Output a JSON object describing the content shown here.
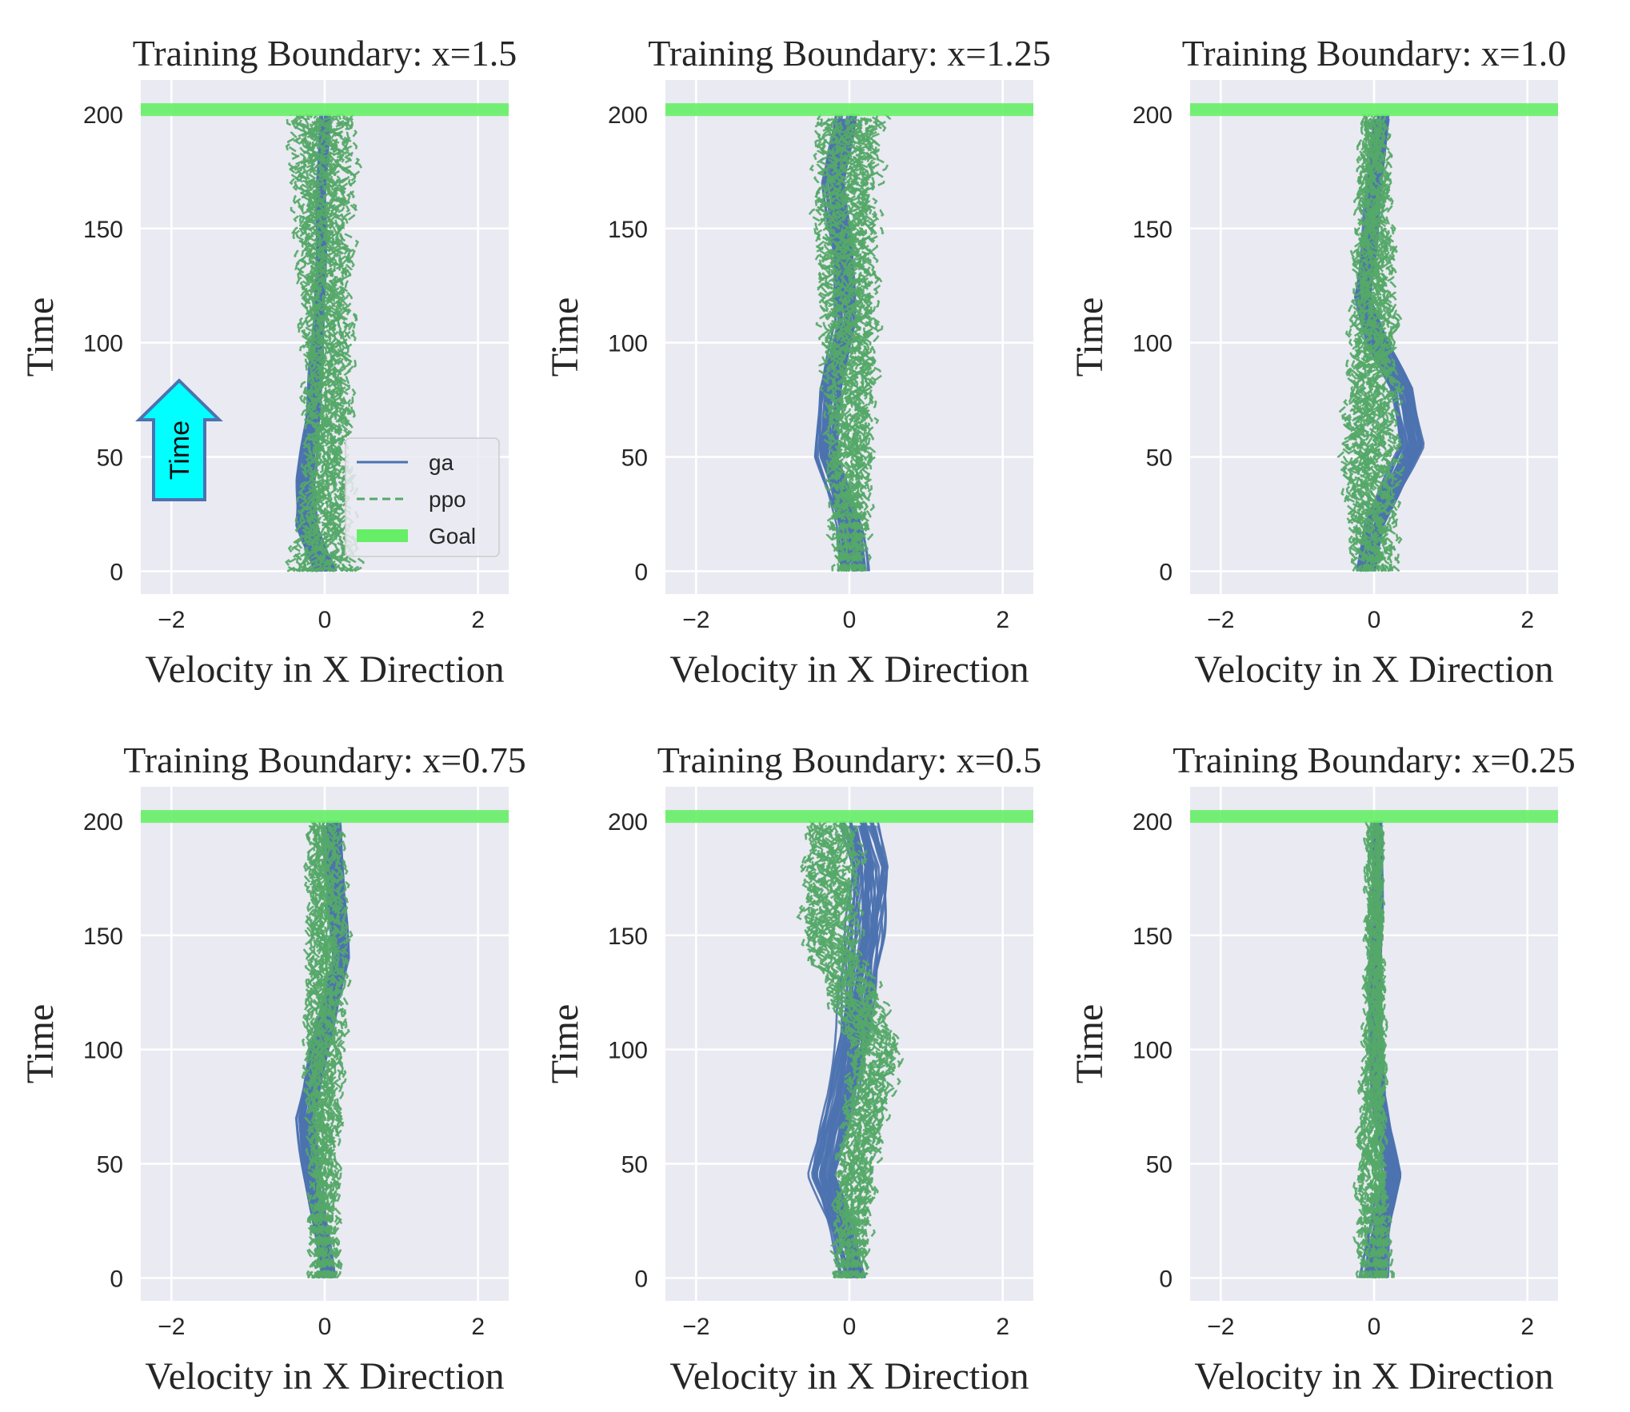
{
  "figure": {
    "annotation": {
      "label": "Time",
      "fill": "#00ffff",
      "edge": "#4c72b0"
    }
  },
  "chart_data": [
    {
      "type": "line",
      "title": "Training Boundary: x=1.5",
      "xlabel": "Velocity in X Direction",
      "ylabel": "Time",
      "xlim": [
        -2.4,
        2.4
      ],
      "ylim": [
        -10,
        215
      ],
      "xticks": [
        -2,
        0,
        2
      ],
      "yticks": [
        0,
        50,
        100,
        150,
        200
      ],
      "grid": true,
      "legend": {
        "placement": "lower-right",
        "entries": [
          "ga",
          "ppo",
          "Goal"
        ]
      },
      "goal": 202,
      "series": [
        {
          "name": "ga",
          "style": "solid",
          "color": "#4c72b0",
          "center": [
            [
              0,
              0.0
            ],
            [
              20,
              -0.25
            ],
            [
              40,
              -0.25
            ],
            [
              70,
              -0.15
            ],
            [
              100,
              -0.1
            ],
            [
              130,
              -0.05
            ],
            [
              160,
              -0.05
            ],
            [
              200,
              0.0
            ]
          ],
          "width": [
            [
              0,
              0.25
            ],
            [
              40,
              0.2
            ],
            [
              100,
              0.12
            ],
            [
              200,
              0.1
            ]
          ]
        },
        {
          "name": "ppo",
          "style": "dashed",
          "color": "#55a868",
          "center": [
            [
              0,
              0.0
            ],
            [
              50,
              0.05
            ],
            [
              100,
              0.05
            ],
            [
              150,
              0.0
            ],
            [
              200,
              0.0
            ]
          ],
          "width": [
            [
              0,
              0.6
            ],
            [
              50,
              0.4
            ],
            [
              100,
              0.45
            ],
            [
              150,
              0.5
            ],
            [
              200,
              0.6
            ]
          ]
        }
      ]
    },
    {
      "type": "line",
      "title": "Training Boundary: x=1.25",
      "xlabel": "Velocity in X Direction",
      "ylabel": "Time",
      "xlim": [
        -2.4,
        2.4
      ],
      "ylim": [
        -10,
        215
      ],
      "xticks": [
        -2,
        0,
        2
      ],
      "yticks": [
        0,
        50,
        100,
        150,
        200
      ],
      "grid": true,
      "goal": 202,
      "series": [
        {
          "name": "ga",
          "style": "solid",
          "color": "#4c72b0",
          "center": [
            [
              0,
              0.05
            ],
            [
              20,
              0.0
            ],
            [
              50,
              -0.3
            ],
            [
              80,
              -0.25
            ],
            [
              110,
              -0.05
            ],
            [
              140,
              -0.1
            ],
            [
              170,
              -0.2
            ],
            [
              200,
              -0.05
            ]
          ],
          "width": [
            [
              0,
              0.3
            ],
            [
              50,
              0.25
            ],
            [
              110,
              0.2
            ],
            [
              170,
              0.25
            ],
            [
              200,
              0.25
            ]
          ]
        },
        {
          "name": "ppo",
          "style": "dashed",
          "color": "#55a868",
          "center": [
            [
              0,
              0.0
            ],
            [
              50,
              0.0
            ],
            [
              100,
              0.0
            ],
            [
              150,
              -0.05
            ],
            [
              200,
              0.0
            ]
          ],
          "width": [
            [
              0,
              0.3
            ],
            [
              50,
              0.4
            ],
            [
              100,
              0.5
            ],
            [
              150,
              0.55
            ],
            [
              200,
              0.6
            ]
          ]
        }
      ]
    },
    {
      "type": "line",
      "title": "Training Boundary: x=1.0",
      "xlabel": "Velocity in X Direction",
      "ylabel": "Time",
      "xlim": [
        -2.4,
        2.4
      ],
      "ylim": [
        -10,
        215
      ],
      "xticks": [
        -2,
        0,
        2
      ],
      "yticks": [
        0,
        50,
        100,
        150,
        200
      ],
      "grid": true,
      "goal": 202,
      "series": [
        {
          "name": "ga",
          "style": "solid",
          "color": "#4c72b0",
          "center": [
            [
              0,
              -0.1
            ],
            [
              20,
              0.0
            ],
            [
              55,
              0.5
            ],
            [
              80,
              0.35
            ],
            [
              100,
              0.05
            ],
            [
              120,
              -0.15
            ],
            [
              150,
              -0.05
            ],
            [
              200,
              0.1
            ]
          ],
          "width": [
            [
              0,
              0.2
            ],
            [
              55,
              0.25
            ],
            [
              100,
              0.2
            ],
            [
              150,
              0.15
            ],
            [
              200,
              0.15
            ]
          ]
        },
        {
          "name": "ppo",
          "style": "dashed",
          "color": "#55a868",
          "center": [
            [
              0,
              0.0
            ],
            [
              50,
              -0.05
            ],
            [
              100,
              0.0
            ],
            [
              150,
              0.0
            ],
            [
              200,
              0.0
            ]
          ],
          "width": [
            [
              0,
              0.4
            ],
            [
              50,
              0.55
            ],
            [
              100,
              0.45
            ],
            [
              150,
              0.35
            ],
            [
              200,
              0.25
            ]
          ]
        }
      ]
    },
    {
      "type": "line",
      "title": "Training Boundary: x=0.75",
      "xlabel": "Velocity in X Direction",
      "ylabel": "Time",
      "xlim": [
        -2.4,
        2.4
      ],
      "ylim": [
        -10,
        215
      ],
      "xticks": [
        -2,
        0,
        2
      ],
      "yticks": [
        0,
        50,
        100,
        150,
        200
      ],
      "grid": true,
      "goal": 202,
      "series": [
        {
          "name": "ga",
          "style": "solid",
          "color": "#4c72b0",
          "center": [
            [
              0,
              0.05
            ],
            [
              30,
              -0.1
            ],
            [
              70,
              -0.25
            ],
            [
              110,
              0.0
            ],
            [
              140,
              0.2
            ],
            [
              170,
              0.15
            ],
            [
              200,
              0.1
            ]
          ],
          "width": [
            [
              0,
              0.15
            ],
            [
              70,
              0.2
            ],
            [
              140,
              0.2
            ],
            [
              200,
              0.2
            ]
          ]
        },
        {
          "name": "ppo",
          "style": "dashed",
          "color": "#55a868",
          "center": [
            [
              0,
              0.0
            ],
            [
              50,
              0.0
            ],
            [
              100,
              0.0
            ],
            [
              150,
              0.05
            ],
            [
              200,
              0.0
            ]
          ],
          "width": [
            [
              0,
              0.25
            ],
            [
              50,
              0.25
            ],
            [
              100,
              0.35
            ],
            [
              150,
              0.35
            ],
            [
              200,
              0.3
            ]
          ]
        }
      ]
    },
    {
      "type": "line",
      "title": "Training Boundary: x=0.5",
      "xlabel": "Velocity in X Direction",
      "ylabel": "Time",
      "xlim": [
        -2.4,
        2.4
      ],
      "ylim": [
        -10,
        215
      ],
      "xticks": [
        -2,
        0,
        2
      ],
      "yticks": [
        0,
        50,
        100,
        150,
        200
      ],
      "grid": true,
      "goal": 202,
      "series": [
        {
          "name": "ga",
          "style": "solid",
          "color": "#4c72b0",
          "center": [
            [
              0,
              0.05
            ],
            [
              20,
              -0.1
            ],
            [
              45,
              -0.35
            ],
            [
              80,
              -0.1
            ],
            [
              110,
              0.05
            ],
            [
              150,
              0.2
            ],
            [
              180,
              0.25
            ],
            [
              200,
              0.1
            ]
          ],
          "width": [
            [
              0,
              0.25
            ],
            [
              45,
              0.3
            ],
            [
              110,
              0.35
            ],
            [
              150,
              0.4
            ],
            [
              200,
              0.45
            ]
          ]
        },
        {
          "name": "ppo",
          "style": "dashed",
          "color": "#55a868",
          "center": [
            [
              0,
              0.0
            ],
            [
              50,
              0.1
            ],
            [
              100,
              0.35
            ],
            [
              150,
              -0.25
            ],
            [
              200,
              -0.2
            ]
          ],
          "width": [
            [
              0,
              0.3
            ],
            [
              50,
              0.35
            ],
            [
              100,
              0.45
            ],
            [
              150,
              0.5
            ],
            [
              200,
              0.5
            ]
          ]
        }
      ]
    },
    {
      "type": "line",
      "title": "Training Boundary: x=0.25",
      "xlabel": "Velocity in X Direction",
      "ylabel": "Time",
      "xlim": [
        -2.4,
        2.4
      ],
      "ylim": [
        -10,
        215
      ],
      "xticks": [
        -2,
        0,
        2
      ],
      "yticks": [
        0,
        50,
        100,
        150,
        200
      ],
      "grid": true,
      "goal": 202,
      "series": [
        {
          "name": "ga",
          "style": "solid",
          "color": "#4c72b0",
          "center": [
            [
              0,
              0.0
            ],
            [
              20,
              0.05
            ],
            [
              45,
              0.25
            ],
            [
              80,
              0.05
            ],
            [
              120,
              0.0
            ],
            [
              160,
              0.05
            ],
            [
              200,
              0.05
            ]
          ],
          "width": [
            [
              0,
              0.3
            ],
            [
              45,
              0.2
            ],
            [
              100,
              0.12
            ],
            [
              200,
              0.1
            ]
          ]
        },
        {
          "name": "ppo",
          "style": "dashed",
          "color": "#55a868",
          "center": [
            [
              0,
              0.0
            ],
            [
              50,
              -0.05
            ],
            [
              100,
              0.0
            ],
            [
              150,
              0.0
            ],
            [
              200,
              0.0
            ]
          ],
          "width": [
            [
              0,
              0.3
            ],
            [
              50,
              0.25
            ],
            [
              100,
              0.2
            ],
            [
              150,
              0.15
            ],
            [
              200,
              0.15
            ]
          ]
        }
      ]
    }
  ]
}
